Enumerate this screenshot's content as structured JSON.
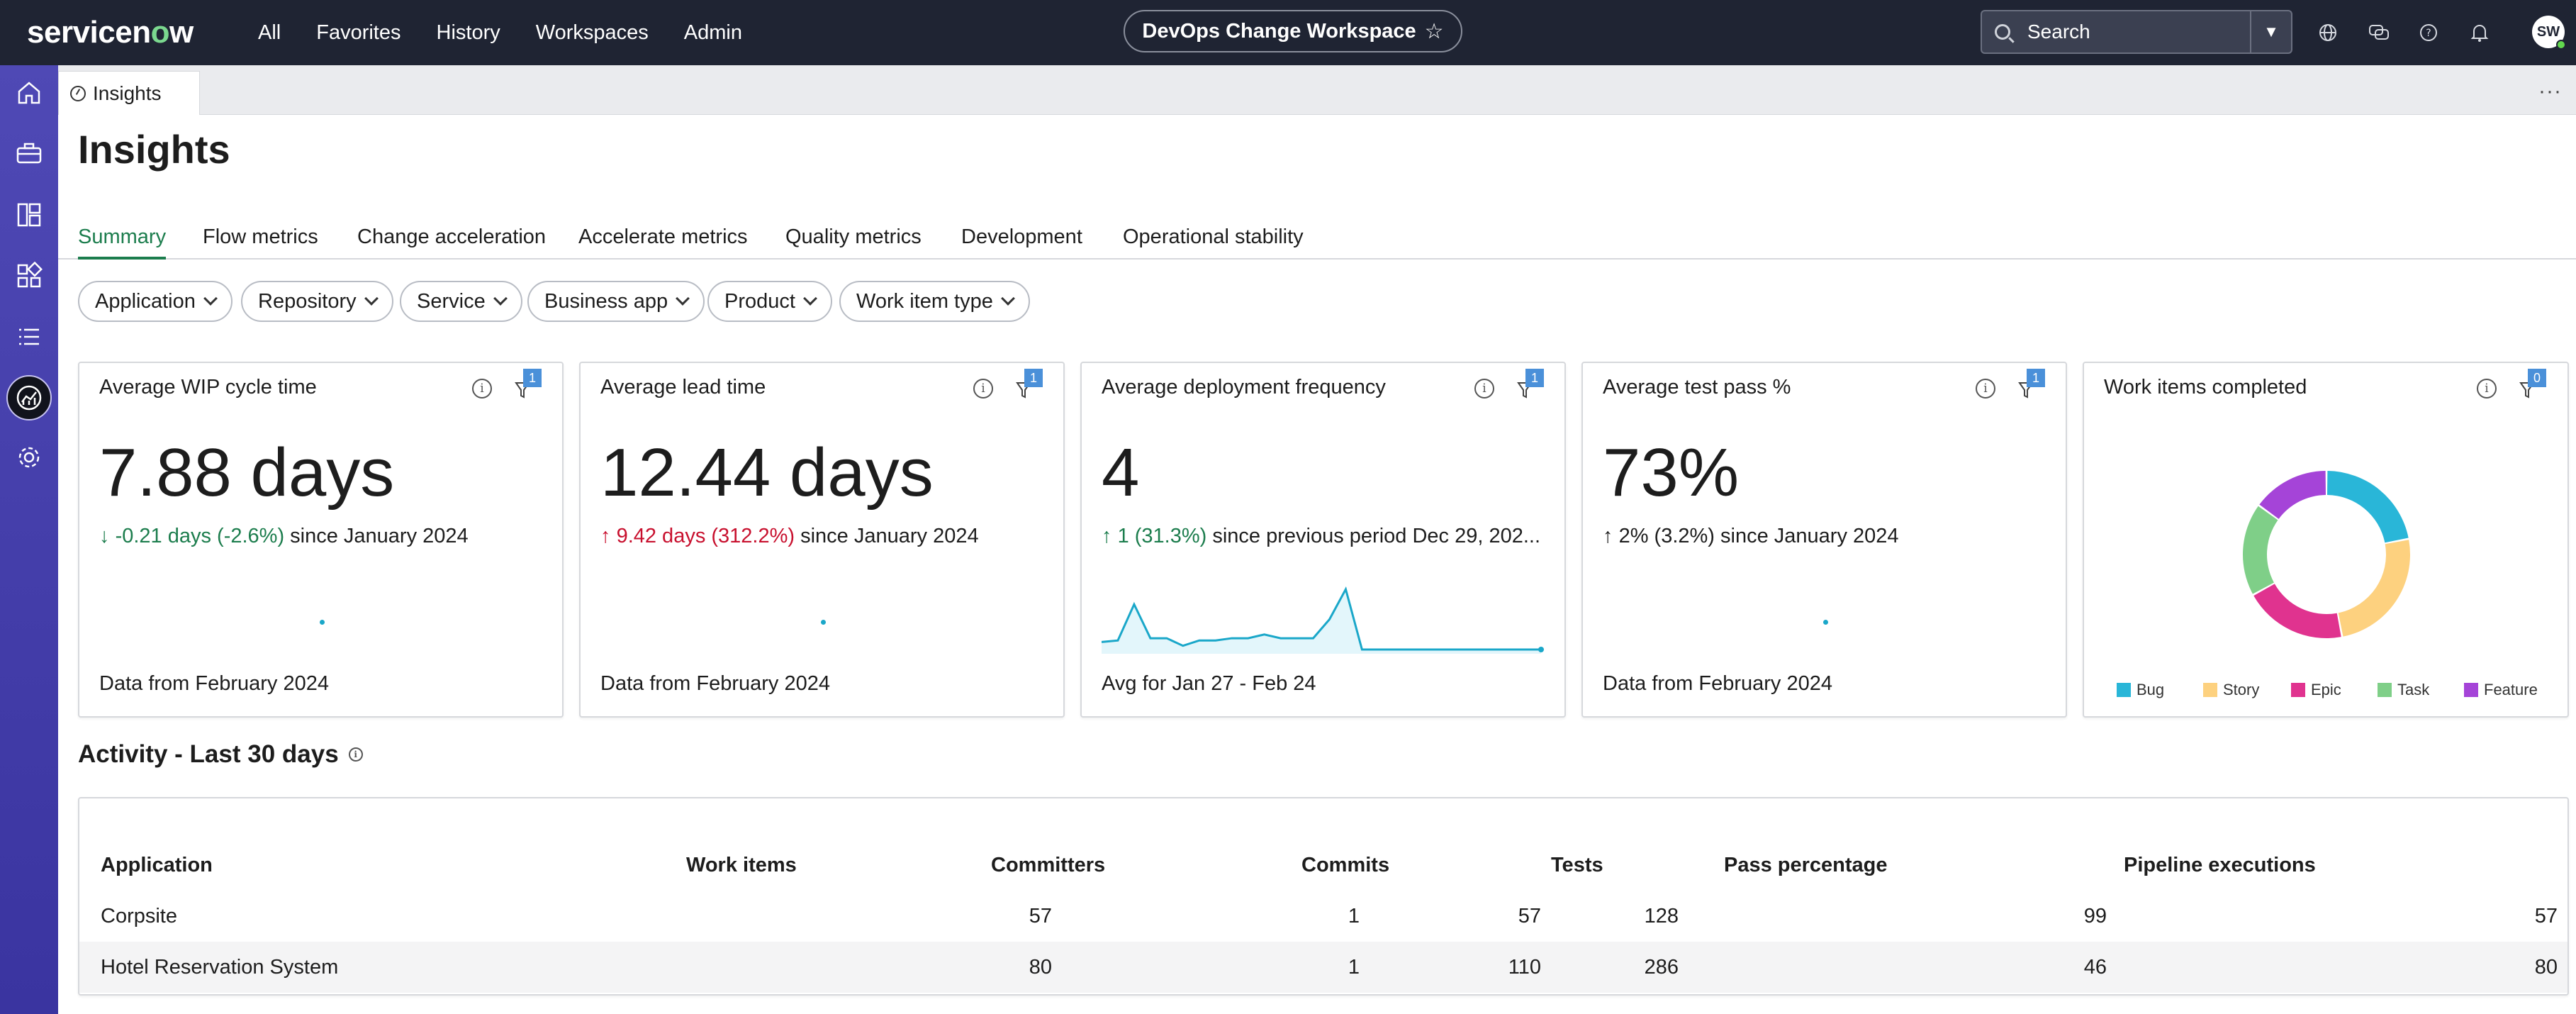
{
  "topbar": {
    "logo": "servicenow",
    "nav": [
      "All",
      "Favorites",
      "History",
      "Workspaces",
      "Admin"
    ],
    "workspace": "DevOps Change Workspace",
    "search_placeholder": "Search",
    "avatar_initials": "SW"
  },
  "tabstrip": {
    "tab_label": "Insights",
    "more": "···"
  },
  "page": {
    "title": "Insights"
  },
  "subtabs": [
    "Summary",
    "Flow metrics",
    "Change acceleration",
    "Accelerate metrics",
    "Quality metrics",
    "Development",
    "Operational stability"
  ],
  "filters": [
    "Application",
    "Repository",
    "Service",
    "Business app",
    "Product",
    "Work item type"
  ],
  "cards": [
    {
      "title": "Average WIP cycle time",
      "badge": "1",
      "value": "7.88 days",
      "delta_arrow": "↓",
      "delta_value": "-0.21 days (-2.6%)",
      "delta_tone": "good",
      "delta_suffix": " since January 2024",
      "footer": "Data from February 2024"
    },
    {
      "title": "Average lead time",
      "badge": "1",
      "value": "12.44 days",
      "delta_arrow": "↑",
      "delta_value": "9.42 days (312.2%)",
      "delta_tone": "bad",
      "delta_suffix": " since January 2024",
      "footer": "Data from February 2024"
    },
    {
      "title": "Average deployment frequency",
      "badge": "1",
      "value": "4",
      "delta_arrow": "↑",
      "delta_value": "1 (31.3%)",
      "delta_tone": "good",
      "delta_suffix": " since previous period Dec 29, 202...",
      "footer": "Avg for Jan 27 - Feb 24"
    },
    {
      "title": "Average test pass %",
      "badge": "1",
      "value": "73%",
      "delta_arrow": "↑",
      "delta_value": "2% (3.2%)",
      "delta_tone": "neutral",
      "delta_suffix": " since January 2024",
      "footer": "Data from February 2024"
    }
  ],
  "work_items_card": {
    "title": "Work items completed",
    "badge": "0",
    "legend": [
      {
        "label": "Bug",
        "color": "#29b6d8"
      },
      {
        "label": "Story",
        "color": "#fdd17f"
      },
      {
        "label": "Epic",
        "color": "#e0338f"
      },
      {
        "label": "Task",
        "color": "#7fcf88"
      },
      {
        "label": "Feature",
        "color": "#a544d8"
      }
    ]
  },
  "chart_data": [
    {
      "type": "line",
      "title": "Average deployment frequency",
      "series": [
        {
          "values": [
            1,
            1.2,
            6,
            1.5,
            1.5,
            0.5,
            1.2,
            1.2,
            1.5,
            1.5,
            2,
            1.5,
            1.5,
            1.5,
            4,
            8,
            0,
            0,
            0,
            0,
            0,
            0,
            0,
            0,
            0,
            0,
            0,
            0
          ]
        }
      ]
    },
    {
      "type": "pie",
      "title": "Work items completed",
      "categories": [
        "Bug",
        "Story",
        "Epic",
        "Task",
        "Feature"
      ],
      "values": [
        22,
        25,
        20,
        18,
        15
      ]
    }
  ],
  "activity": {
    "title": "Activity - Last 30 days",
    "columns": [
      "Application",
      "Work items",
      "Committers",
      "Commits",
      "Tests",
      "Pass percentage",
      "Pipeline executions"
    ],
    "rows": [
      {
        "application": "Corpsite",
        "work_items": "57",
        "committers": "1",
        "commits": "57",
        "tests": "128",
        "pass_percentage": "99",
        "pipeline_executions": "57"
      },
      {
        "application": "Hotel Reservation System",
        "work_items": "80",
        "committers": "1",
        "commits": "110",
        "tests": "286",
        "pass_percentage": "46",
        "pipeline_executions": "80"
      }
    ]
  }
}
